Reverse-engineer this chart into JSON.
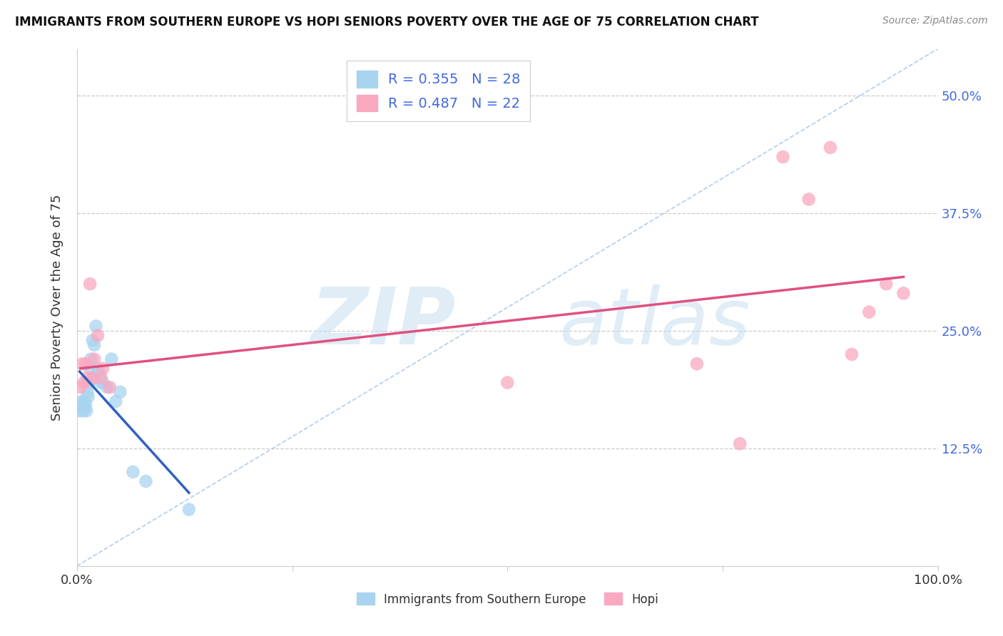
{
  "title": "IMMIGRANTS FROM SOUTHERN EUROPE VS HOPI SENIORS POVERTY OVER THE AGE OF 75 CORRELATION CHART",
  "source": "Source: ZipAtlas.com",
  "ylabel": "Seniors Poverty Over the Age of 75",
  "xlim": [
    0.0,
    1.0
  ],
  "ylim": [
    0.0,
    0.55
  ],
  "xticks": [
    0.0,
    0.25,
    0.5,
    0.75,
    1.0
  ],
  "xtick_labels": [
    "0.0%",
    "",
    "",
    "",
    "100.0%"
  ],
  "ytick_labels": [
    "12.5%",
    "25.0%",
    "37.5%",
    "50.0%"
  ],
  "yticks": [
    0.125,
    0.25,
    0.375,
    0.5
  ],
  "legend_r1": "R = 0.355",
  "legend_n1": "N = 28",
  "legend_r2": "R = 0.487",
  "legend_n2": "N = 22",
  "legend_label1": "Immigrants from Southern Europe",
  "legend_label2": "Hopi",
  "color_blue": "#A8D4F0",
  "color_pink": "#F9A8C0",
  "line_blue": "#3060C0",
  "line_pink": "#E05080",
  "diag_color": "#A0C0E8",
  "blue_points_x": [
    0.003,
    0.005,
    0.006,
    0.007,
    0.008,
    0.009,
    0.01,
    0.011,
    0.012,
    0.013,
    0.014,
    0.015,
    0.016,
    0.018,
    0.019,
    0.02,
    0.022,
    0.024,
    0.026,
    0.028,
    0.03,
    0.035,
    0.04,
    0.045,
    0.05,
    0.065,
    0.08,
    0.13
  ],
  "blue_points_y": [
    0.165,
    0.17,
    0.175,
    0.165,
    0.175,
    0.168,
    0.172,
    0.165,
    0.185,
    0.18,
    0.195,
    0.21,
    0.22,
    0.24,
    0.2,
    0.235,
    0.255,
    0.21,
    0.205,
    0.195,
    0.195,
    0.19,
    0.22,
    0.175,
    0.185,
    0.1,
    0.09,
    0.06
  ],
  "pink_points_x": [
    0.004,
    0.006,
    0.008,
    0.01,
    0.012,
    0.015,
    0.018,
    0.02,
    0.024,
    0.028,
    0.03,
    0.038,
    0.5,
    0.72,
    0.77,
    0.82,
    0.85,
    0.875,
    0.9,
    0.92,
    0.94,
    0.96
  ],
  "pink_points_y": [
    0.19,
    0.215,
    0.195,
    0.215,
    0.2,
    0.3,
    0.2,
    0.22,
    0.245,
    0.2,
    0.21,
    0.19,
    0.195,
    0.215,
    0.13,
    0.435,
    0.39,
    0.445,
    0.225,
    0.27,
    0.3,
    0.29
  ]
}
